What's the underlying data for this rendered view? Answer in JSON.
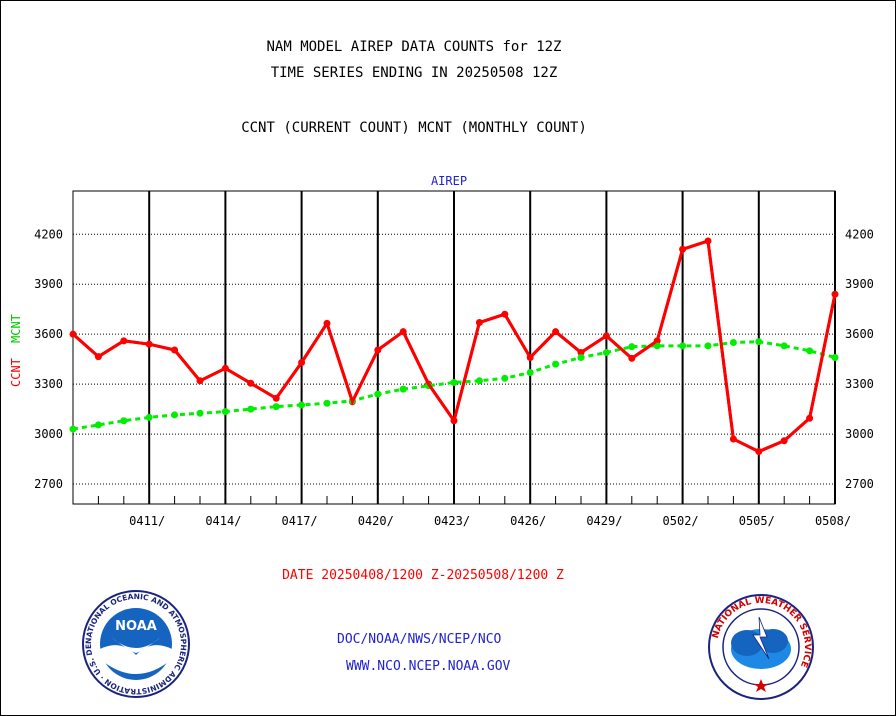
{
  "header": {
    "line1": "NAM MODEL AIREP DATA COUNTS for 12Z",
    "line2": "TIME SERIES ENDING IN 20250508 12Z",
    "line3": "CCNT (CURRENT COUNT) MCNT (MONTHLY COUNT)"
  },
  "chart_data": {
    "type": "line",
    "title": "AIREP",
    "ylabel_series1": "CCNT",
    "ylabel_series2": "MCNT",
    "xlabel": "DATE 20250408/1200 Z-20250508/1200 Z",
    "ylim": [
      2580,
      4460
    ],
    "yticks": [
      2700,
      3000,
      3300,
      3600,
      3900,
      4200
    ],
    "x_tick_labels": [
      "0411/",
      "0414/",
      "0417/",
      "0420/",
      "0423/",
      "0426/",
      "0429/",
      "0502/",
      "0505/",
      "0508/"
    ],
    "x": [
      "0408",
      "0409",
      "0410",
      "0411",
      "0412",
      "0413",
      "0414",
      "0415",
      "0416",
      "0417",
      "0418",
      "0419",
      "0420",
      "0421",
      "0422",
      "0423",
      "0424",
      "0425",
      "0426",
      "0427",
      "0428",
      "0429",
      "0430",
      "0501",
      "0502",
      "0503",
      "0504",
      "0505",
      "0506",
      "0507",
      "0508"
    ],
    "grid": true,
    "series": [
      {
        "name": "CCNT",
        "color": "#ff0000",
        "values": [
          3600,
          3465,
          3560,
          3540,
          3505,
          3320,
          3395,
          3305,
          3215,
          3430,
          3665,
          3195,
          3505,
          3615,
          3300,
          3080,
          3670,
          3720,
          3460,
          3615,
          3490,
          3590,
          3455,
          3560,
          4110,
          4160,
          2970,
          2895,
          2960,
          3095,
          3840
        ]
      },
      {
        "name": "MCNT",
        "color": "#00ee00",
        "values": [
          3030,
          3055,
          3080,
          3100,
          3115,
          3125,
          3135,
          3150,
          3165,
          3175,
          3185,
          3200,
          3240,
          3270,
          3290,
          3310,
          3320,
          3335,
          3370,
          3420,
          3460,
          3490,
          3525,
          3530,
          3530,
          3530,
          3550,
          3555,
          3530,
          3500,
          3460
        ]
      }
    ]
  },
  "footer": {
    "agency": "DOC/NOAA/NWS/NCEP/NCO",
    "website": "WWW.NCO.NCEP.NOAA.GOV"
  },
  "logos": {
    "noaa_text": "NOAA",
    "noaa_ring": "NATIONAL OCEANIC AND ATMOSPHERIC ADMINISTRATION · U.S. DEPARTMENT OF COMMERCE ·",
    "nws_ring": "NATIONAL WEATHER SERVICE"
  }
}
